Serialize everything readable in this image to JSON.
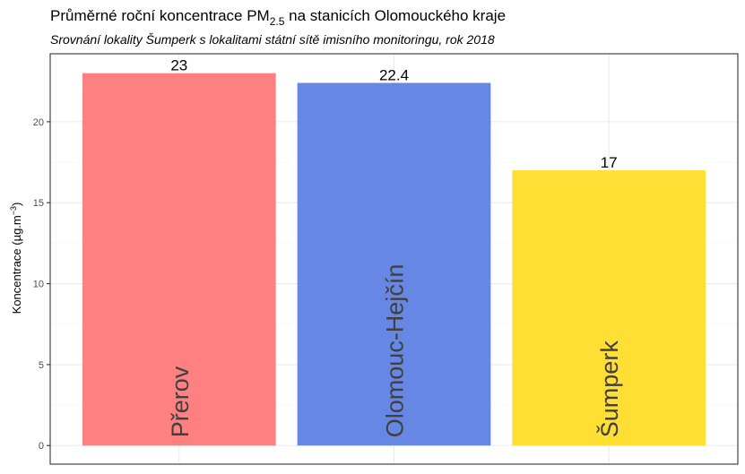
{
  "chart_data": {
    "type": "bar",
    "title_parts": {
      "before": "Průměrné roční koncentrace PM",
      "subscript": "2.5",
      "after": " na stanicích Olomouckého kraje"
    },
    "subtitle": "Srovnání lokality Šumperk s lokalitami státní sítě imisního monitoringu, rok 2018",
    "ylabel_parts": {
      "before": "Koncentrace (µg.m",
      "superscript": "−3",
      "after": ")"
    },
    "xlabel": "",
    "categories": [
      "Přerov",
      "Olomouc-Hejčín",
      "Šumperk"
    ],
    "values": [
      23,
      22.4,
      17
    ],
    "value_labels": [
      "23",
      "22.4",
      "17"
    ],
    "colors": [
      "#ff8080",
      "#6687e3",
      "#ffdf33"
    ],
    "yticks": [
      0,
      5,
      10,
      15,
      20
    ],
    "ytick_labels": [
      "0",
      "5",
      "10",
      "15",
      "20"
    ],
    "ylim": [
      -1.15,
      24.2
    ],
    "grid": true,
    "legend": "none"
  }
}
